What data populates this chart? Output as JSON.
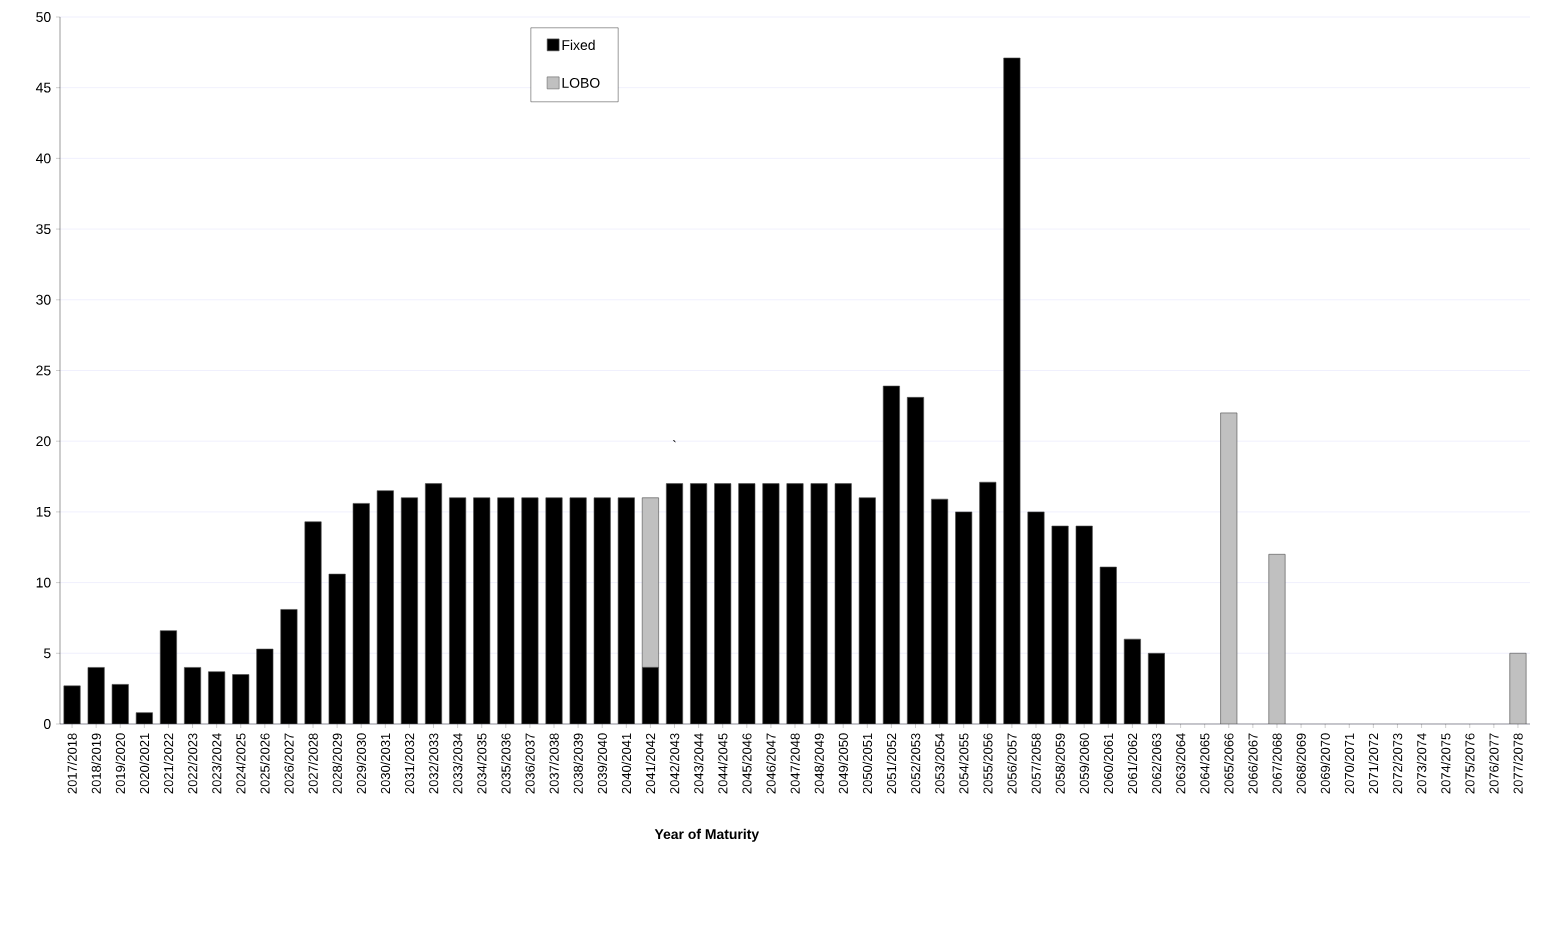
{
  "chart_data": {
    "type": "bar",
    "stacked": true,
    "xlabel": "Year of Maturity",
    "categories": [
      "2017/2018",
      "2018/2019",
      "2019/2020",
      "2020/2021",
      "2021/2022",
      "2022/2023",
      "2023/2024",
      "2024/2025",
      "2025/2026",
      "2026/2027",
      "2027/2028",
      "2028/2029",
      "2029/2030",
      "2030/2031",
      "2031/2032",
      "2032/2033",
      "2033/2034",
      "2034/2035",
      "2035/2036",
      "2036/2037",
      "2037/2038",
      "2038/2039",
      "2039/2040",
      "2040/2041",
      "2041/2042",
      "2042/2043",
      "2043/2044",
      "2044/2045",
      "2045/2046",
      "2046/2047",
      "2047/2048",
      "2048/2049",
      "2049/2050",
      "2050/2051",
      "2051/2052",
      "2052/2053",
      "2053/2054",
      "2054/2055",
      "2055/2056",
      "2056/2057",
      "2057/2058",
      "2058/2059",
      "2059/2060",
      "2060/2061",
      "2061/2062",
      "2062/2063",
      "2063/2064",
      "2064/2065",
      "2065/2066",
      "2066/2067",
      "2067/2068",
      "2068/2069",
      "2069/2070",
      "2070/2071",
      "2071/2072",
      "2072/2073",
      "2073/2074",
      "2074/2075",
      "2075/2076",
      "2076/2077",
      "2077/2078"
    ],
    "series": [
      {
        "name": "Fixed",
        "color": "#000000",
        "values": [
          2.7,
          4,
          2.8,
          0.8,
          6.6,
          4,
          3.7,
          3.5,
          5.3,
          8.1,
          14.3,
          10.6,
          15.6,
          16.5,
          16,
          17,
          16,
          16,
          16,
          16,
          16,
          16,
          16,
          16,
          4,
          17,
          17,
          17,
          17,
          17,
          17,
          17,
          17,
          16,
          23.9,
          23.1,
          15.9,
          15,
          17.1,
          47.1,
          15,
          14,
          14,
          11.1,
          6,
          5,
          0,
          0,
          0,
          0,
          0,
          0,
          0,
          0,
          0,
          0,
          0,
          0,
          0,
          0,
          0
        ]
      },
      {
        "name": "LOBO",
        "color": "#c0c0c0",
        "values": [
          0,
          0,
          0,
          0,
          0,
          0,
          0,
          0,
          0,
          0,
          0,
          0,
          0,
          0,
          0,
          0,
          0,
          0,
          0,
          0,
          0,
          0,
          0,
          0,
          12,
          0,
          0,
          0,
          0,
          0,
          0,
          0,
          0,
          0,
          0,
          0,
          0,
          0,
          0,
          0,
          0,
          0,
          0,
          0,
          0,
          0,
          0,
          0,
          22,
          0,
          12,
          0,
          0,
          0,
          0,
          0,
          0,
          0,
          0,
          0,
          5
        ]
      }
    ],
    "ylim": [
      0,
      50
    ],
    "yticks": [
      0,
      5,
      10,
      15,
      20,
      25,
      30,
      35,
      40,
      45,
      50
    ],
    "grid": "y",
    "legend": "top",
    "annotations": [
      "`"
    ]
  }
}
